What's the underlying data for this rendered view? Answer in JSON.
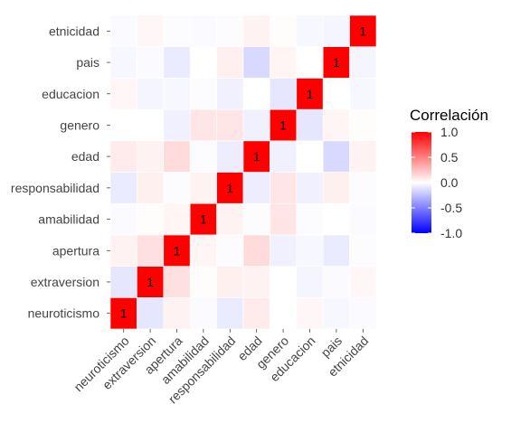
{
  "chart_data": {
    "type": "heatmap",
    "title": "",
    "xlabel": "",
    "ylabel": "",
    "variables": [
      "neuroticismo",
      "extraversion",
      "apertura",
      "amabilidad",
      "responsabilidad",
      "edad",
      "genero",
      "educacion",
      "pais",
      "etnicidad"
    ],
    "matrix": [
      [
        1.0,
        -0.1,
        0.05,
        -0.02,
        -0.08,
        0.08,
        0.0,
        0.03,
        -0.03,
        -0.02
      ],
      [
        -0.1,
        1.0,
        0.12,
        0.01,
        0.06,
        0.05,
        0.0,
        -0.04,
        -0.02,
        0.03
      ],
      [
        0.05,
        0.12,
        1.0,
        0.04,
        -0.01,
        0.14,
        -0.06,
        -0.03,
        -0.08,
        -0.01
      ],
      [
        -0.02,
        0.01,
        0.04,
        1.0,
        0.05,
        -0.01,
        0.1,
        -0.01,
        0.0,
        -0.02
      ],
      [
        -0.08,
        0.06,
        -0.01,
        0.05,
        1.0,
        -0.07,
        0.1,
        -0.06,
        0.06,
        -0.01
      ],
      [
        0.08,
        0.05,
        0.14,
        -0.01,
        -0.07,
        1.0,
        -0.06,
        0.0,
        -0.15,
        0.05
      ],
      [
        0.0,
        0.0,
        -0.06,
        0.1,
        0.1,
        -0.06,
        1.0,
        -0.1,
        0.04,
        0.01
      ],
      [
        0.03,
        -0.04,
        -0.03,
        -0.01,
        -0.06,
        0.0,
        -0.1,
        1.0,
        0.0,
        -0.03
      ],
      [
        -0.03,
        -0.02,
        -0.08,
        0.0,
        0.06,
        -0.15,
        0.04,
        0.0,
        1.0,
        -0.04
      ],
      [
        -0.02,
        0.03,
        -0.01,
        -0.02,
        -0.01,
        0.05,
        0.01,
        -0.03,
        -0.04,
        1.0
      ]
    ],
    "labeled_value": "1",
    "color_scale": {
      "low": "#0000FF",
      "mid": "#FFFFFF",
      "high": "#FF0000",
      "limits": [
        -1.0,
        1.0
      ]
    },
    "legend": {
      "title": "Correlación",
      "position": "right",
      "ticks": [
        "1.0",
        "0.5",
        "0.0",
        "-0.5",
        "-1.0"
      ]
    },
    "grid": false
  }
}
